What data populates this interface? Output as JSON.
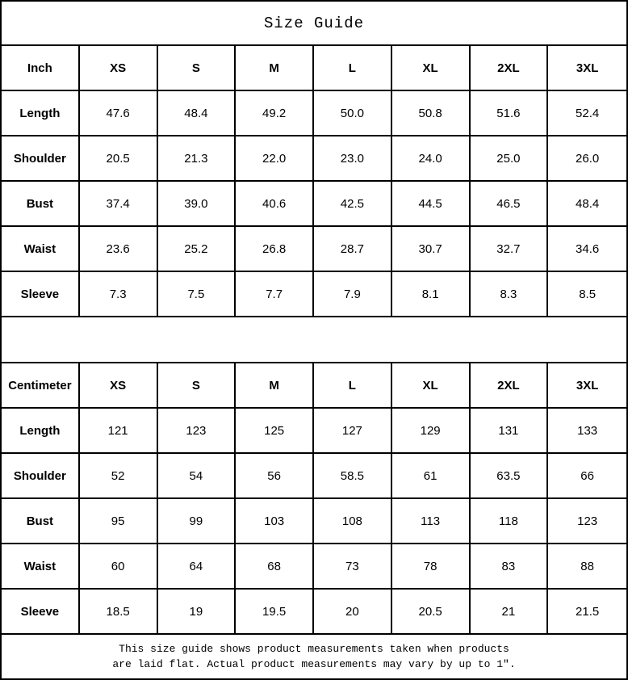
{
  "title": "Size Guide",
  "colors": {
    "border": "#000000",
    "background": "#ffffff",
    "text": "#000000"
  },
  "sizes": [
    "XS",
    "S",
    "M",
    "L",
    "XL",
    "2XL",
    "3XL"
  ],
  "tables": [
    {
      "unit_label": "Inch",
      "rows": [
        {
          "label": "Length",
          "values": [
            "47.6",
            "48.4",
            "49.2",
            "50.0",
            "50.8",
            "51.6",
            "52.4"
          ]
        },
        {
          "label": "Shoulder",
          "values": [
            "20.5",
            "21.3",
            "22.0",
            "23.0",
            "24.0",
            "25.0",
            "26.0"
          ]
        },
        {
          "label": "Bust",
          "values": [
            "37.4",
            "39.0",
            "40.6",
            "42.5",
            "44.5",
            "46.5",
            "48.4"
          ]
        },
        {
          "label": "Waist",
          "values": [
            "23.6",
            "25.2",
            "26.8",
            "28.7",
            "30.7",
            "32.7",
            "34.6"
          ]
        },
        {
          "label": "Sleeve",
          "values": [
            "7.3",
            "7.5",
            "7.7",
            "7.9",
            "8.1",
            "8.3",
            "8.5"
          ]
        }
      ]
    },
    {
      "unit_label": "Centimeter",
      "rows": [
        {
          "label": "Length",
          "values": [
            "121",
            "123",
            "125",
            "127",
            "129",
            "131",
            "133"
          ]
        },
        {
          "label": "Shoulder",
          "values": [
            "52",
            "54",
            "56",
            "58.5",
            "61",
            "63.5",
            "66"
          ]
        },
        {
          "label": "Bust",
          "values": [
            "95",
            "99",
            "103",
            "108",
            "113",
            "118",
            "123"
          ]
        },
        {
          "label": "Waist",
          "values": [
            "60",
            "64",
            "68",
            "73",
            "78",
            "83",
            "88"
          ]
        },
        {
          "label": "Sleeve",
          "values": [
            "18.5",
            "19",
            "19.5",
            "20",
            "20.5",
            "21",
            "21.5"
          ]
        }
      ]
    }
  ],
  "footer": {
    "line1": "This size guide shows product measurements taken when products",
    "line2": "are laid flat. Actual product measurements may vary by up to 1″."
  }
}
